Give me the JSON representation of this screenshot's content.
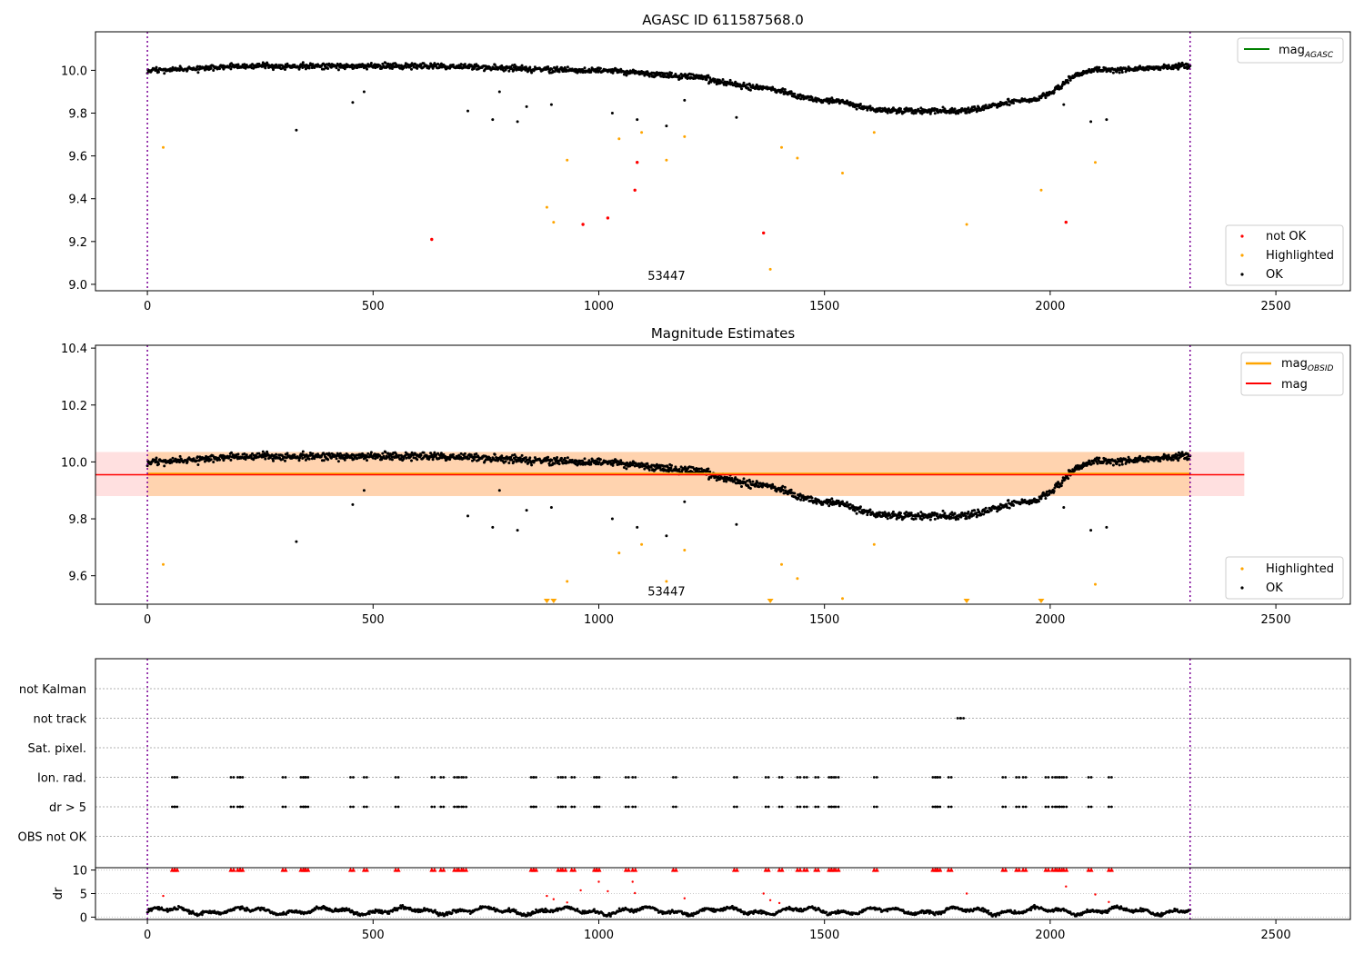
{
  "chart_data": [
    {
      "type": "scatter",
      "title": "AGASC ID 611587568.0",
      "xlim": [
        -115,
        2665
      ],
      "ylim": [
        8.97,
        10.18
      ],
      "x_ticks": [
        0,
        500,
        1000,
        1500,
        2000,
        2500
      ],
      "y_ticks": [
        9.0,
        9.2,
        9.4,
        9.6,
        9.8,
        10.0
      ],
      "y_tick_labels": [
        "9.0",
        "9.2",
        "9.4",
        "9.6",
        "9.8",
        "10.0"
      ],
      "obs_bounds": [
        0,
        2310
      ],
      "obs_label": "53447",
      "obs_label_at": [
        1150,
        9.02
      ],
      "legend_lines": {
        "placement": "top-right",
        "entries": [
          {
            "label": "mag",
            "subscript": "AGASC",
            "color": "#008000"
          }
        ]
      },
      "legend_points": {
        "placement": "bottom-right",
        "entries": [
          {
            "label": "not OK",
            "color": "#ff0000"
          },
          {
            "label": "Highlighted",
            "color": "#ffa500"
          },
          {
            "label": "OK",
            "color": "#000000"
          }
        ]
      },
      "trend": {
        "x": [
          0,
          250,
          600,
          1000,
          1200,
          1350,
          1500,
          1650,
          1800,
          1950,
          2100,
          2310
        ],
        "y": [
          10.0,
          10.02,
          10.02,
          10.0,
          9.97,
          9.92,
          9.86,
          9.81,
          9.81,
          9.86,
          10.0,
          10.02
        ]
      },
      "trend_scatter": 0.013,
      "outliers_ok": [
        [
          330,
          9.72
        ],
        [
          455,
          9.85
        ],
        [
          480,
          9.9
        ],
        [
          710,
          9.81
        ],
        [
          765,
          9.77
        ],
        [
          780,
          9.9
        ],
        [
          820,
          9.76
        ],
        [
          840,
          9.83
        ],
        [
          895,
          9.84
        ],
        [
          1030,
          9.8
        ],
        [
          1085,
          9.77
        ],
        [
          1150,
          9.74
        ],
        [
          1190,
          9.86
        ],
        [
          1305,
          9.78
        ],
        [
          2030,
          9.84
        ],
        [
          2090,
          9.76
        ],
        [
          2125,
          9.77
        ]
      ],
      "highlighted": [
        [
          35,
          9.64
        ],
        [
          885,
          9.36
        ],
        [
          900,
          9.29
        ],
        [
          930,
          9.58
        ],
        [
          1045,
          9.68
        ],
        [
          1095,
          9.71
        ],
        [
          1150,
          9.58
        ],
        [
          1190,
          9.69
        ],
        [
          1380,
          9.07
        ],
        [
          1405,
          9.64
        ],
        [
          1440,
          9.59
        ],
        [
          1540,
          9.52
        ],
        [
          1610,
          9.71
        ],
        [
          1815,
          9.28
        ],
        [
          1980,
          9.44
        ],
        [
          2100,
          9.57
        ]
      ],
      "not_ok": [
        [
          630,
          9.21
        ],
        [
          965,
          9.28
        ],
        [
          1020,
          9.31
        ],
        [
          1080,
          9.44
        ],
        [
          1085,
          9.57
        ],
        [
          1365,
          9.24
        ],
        [
          2035,
          9.29
        ]
      ]
    },
    {
      "type": "scatter",
      "title": "Magnitude Estimates",
      "xlim": [
        -115,
        2665
      ],
      "ylim": [
        9.5,
        10.41
      ],
      "x_ticks": [
        0,
        500,
        1000,
        1500,
        2000,
        2500
      ],
      "y_ticks": [
        9.6,
        9.8,
        10.0,
        10.2,
        10.4
      ],
      "y_tick_labels": [
        "9.6",
        "9.8",
        "10.0",
        "10.2",
        "10.4"
      ],
      "obs_bounds": [
        0,
        2310
      ],
      "obs_label": "53447",
      "obs_label_at": [
        1150,
        9.53
      ],
      "mag_line": {
        "value": 9.955,
        "band": [
          9.88,
          10.035
        ],
        "x_range": [
          -115,
          2430
        ],
        "color": "#ff0000"
      },
      "mag_obsid_line": {
        "value": 9.958,
        "band": [
          9.88,
          10.035
        ],
        "x_range": [
          0,
          2310
        ],
        "color": "#ffa500"
      },
      "legend_lines": {
        "placement": "top-right",
        "entries": [
          {
            "label": "mag",
            "subscript": "OBSID",
            "color": "#ffa500"
          },
          {
            "label": "mag",
            "subscript": "",
            "color": "#ff0000"
          }
        ]
      },
      "legend_points": {
        "placement": "bottom-right",
        "entries": [
          {
            "label": "Highlighted",
            "color": "#ffa500"
          },
          {
            "label": "OK",
            "color": "#000000"
          }
        ]
      },
      "offscale_markers": [
        885,
        900,
        1380,
        1815,
        1980
      ]
    },
    {
      "type": "scatter",
      "title": "",
      "xlim": [
        -115,
        2665
      ],
      "x_ticks": [
        0,
        500,
        1000,
        1500,
        2000,
        2500
      ],
      "flag_rows": [
        "not Kalman",
        "not track",
        "Sat. pixel.",
        "Ion. rad.",
        "dr > 5",
        "OBS not OK"
      ],
      "flag_events": {
        "not track": [
          1795,
          1802
        ],
        "Ion. rad.": [
          55,
          60,
          185,
          200,
          205,
          300,
          340,
          345,
          350,
          450,
          480,
          550,
          630,
          650,
          680,
          690,
          700,
          850,
          855,
          910,
          920,
          940,
          990,
          995,
          1060,
          1075,
          1165,
          1300,
          1370,
          1400,
          1440,
          1455,
          1480,
          1510,
          1515,
          1525,
          1610,
          1740,
          1745,
          1750,
          1775,
          1895,
          1925,
          1940,
          1990,
          2005,
          2015,
          2020,
          2030,
          2085,
          2130
        ],
        "dr > 5": [
          55,
          60,
          185,
          200,
          205,
          300,
          340,
          345,
          350,
          450,
          480,
          550,
          630,
          650,
          680,
          690,
          700,
          850,
          855,
          910,
          920,
          940,
          990,
          995,
          1060,
          1075,
          1165,
          1300,
          1370,
          1400,
          1440,
          1455,
          1480,
          1510,
          1515,
          1525,
          1610,
          1740,
          1745,
          1750,
          1775,
          1895,
          1925,
          1940,
          1990,
          2005,
          2015,
          2020,
          2030,
          2085,
          2130
        ]
      },
      "dr": {
        "ylabel": "dr",
        "ylim": [
          -0.5,
          10.5
        ],
        "y_ticks": [
          0,
          5,
          10
        ],
        "outliers": [
          [
            35,
            4.5
          ],
          [
            885,
            4.5
          ],
          [
            900,
            3.8
          ],
          [
            930,
            3.1
          ],
          [
            960,
            5.7
          ],
          [
            1000,
            7.5
          ],
          [
            1020,
            5.5
          ],
          [
            1075,
            7.5
          ],
          [
            1080,
            5.1
          ],
          [
            1190,
            4.0
          ],
          [
            1365,
            5.0
          ],
          [
            1380,
            3.6
          ],
          [
            1400,
            3.0
          ],
          [
            1815,
            5.0
          ],
          [
            2035,
            6.5
          ],
          [
            2100,
            4.8
          ],
          [
            2130,
            3.2
          ]
        ]
      }
    }
  ]
}
